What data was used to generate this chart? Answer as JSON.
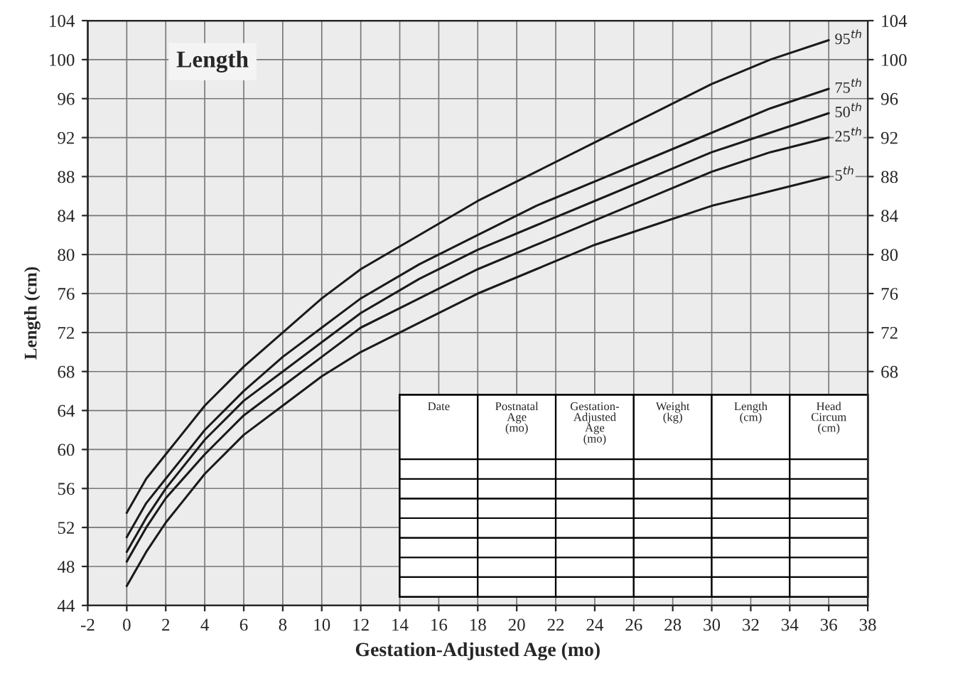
{
  "chart_data": {
    "type": "line",
    "xlabel": "Gestation-Adjusted Age (mo)",
    "ylabel": "Length (cm)",
    "x": [
      0,
      1,
      2,
      4,
      6,
      8,
      10,
      12,
      15,
      18,
      21,
      24,
      27,
      30,
      33,
      36
    ],
    "series": [
      {
        "name": "95$^{th}$",
        "color": "#1a1a1a",
        "values": [
          53.5,
          57,
          59.5,
          64.5,
          68.5,
          72,
          75.5,
          78.5,
          82,
          85.5,
          88.5,
          91.5,
          94.5,
          97.5,
          100,
          102
        ]
      },
      {
        "name": "75$^{th}$",
        "color": "#1a1a1a",
        "values": [
          51,
          54.5,
          57,
          62,
          66,
          69.5,
          72.5,
          75.5,
          79,
          82,
          85,
          87.5,
          90,
          92.5,
          95,
          97
        ]
      },
      {
        "name": "50$^{th}$",
        "color": "#1a1a1a",
        "values": [
          49.5,
          53,
          56,
          61,
          65,
          68,
          71,
          74,
          77.5,
          80.5,
          83,
          85.5,
          88,
          90.5,
          92.5,
          94.5
        ]
      },
      {
        "name": "25$^{th}$",
        "color": "#1a1a1a",
        "values": [
          48.5,
          52,
          55,
          59.5,
          63.5,
          66.5,
          69.5,
          72.5,
          75.5,
          78.5,
          81,
          83.5,
          86,
          88.5,
          90.5,
          92
        ]
      },
      {
        "name": "5$^{th}$",
        "color": "#1a1a1a",
        "values": [
          46,
          49.5,
          52.5,
          57.5,
          61.5,
          64.5,
          67.5,
          70,
          73,
          76,
          78.5,
          81,
          83,
          85,
          86.5,
          88
        ]
      }
    ],
    "xlim": [
      -2,
      38
    ],
    "xticks": [
      -2,
      0,
      2,
      4,
      6,
      8,
      10,
      12,
      14,
      16,
      18,
      20,
      22,
      24,
      26,
      28,
      30,
      32,
      34,
      36,
      38
    ],
    "ylim": [
      44,
      104
    ],
    "yticks": [
      44,
      48,
      52,
      56,
      60,
      64,
      68,
      72,
      76,
      80,
      84,
      88,
      92,
      96,
      100,
      104
    ],
    "y2lim": [
      44,
      104
    ],
    "y2ticks": [
      68,
      72,
      76,
      80,
      84,
      88,
      92,
      96,
      100,
      104
    ],
    "grid": true,
    "legend": false,
    "marker": "none",
    "line_style": "solid",
    "annotations": [
      "Length",
      "Date",
      "Postnatal Age (mo)",
      "Gestation-Adjusted Age (mo)",
      "Weight (kg)",
      "Length (cm)",
      "Head Circum (cm)"
    ]
  }
}
